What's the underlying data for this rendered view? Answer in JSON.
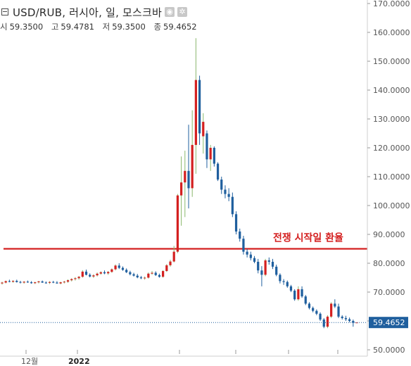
{
  "header": {
    "title": "USD/RUB, 러시아, 일, 모스크바",
    "ohlc": [
      {
        "label": "시",
        "value": "59.3500"
      },
      {
        "label": "고",
        "value": "59.4781"
      },
      {
        "label": "저",
        "value": "59.3500"
      },
      {
        "label": "종",
        "value": "59.4652"
      }
    ],
    "icons": [
      "eye-icon",
      "gear-icon"
    ]
  },
  "chart_data": {
    "type": "candlestick",
    "title": "USD/RUB, 러시아, 일, 모스크바",
    "y_ticks": [
      "50.0000",
      "60.0000",
      "70.0000",
      "80.0000",
      "90.0000",
      "100.0000",
      "110.0000",
      "120.0000",
      "130.0000",
      "140.0000",
      "150.0000",
      "160.0000",
      "170.0000"
    ],
    "ylim": [
      50,
      170
    ],
    "x_ticks": [
      "12월",
      "2022"
    ],
    "last_price_label": "59.4652",
    "last_price": 59.4652,
    "reference_line": {
      "value": 85.0,
      "label": "전쟁 시작일 환율",
      "color": "#d42020"
    },
    "colors": {
      "up": "#d42020",
      "down": "#1f5f9e",
      "wick_up": "#8ab86c",
      "wick_down": "#1f5f9e"
    },
    "candles": [
      [
        73.0,
        73.6,
        72.6,
        73.3
      ],
      [
        73.3,
        74.0,
        73.0,
        73.8
      ],
      [
        73.8,
        74.3,
        73.4,
        73.6
      ],
      [
        73.6,
        74.1,
        73.2,
        73.9
      ],
      [
        73.9,
        74.3,
        73.3,
        73.5
      ],
      [
        73.5,
        73.9,
        73.0,
        73.3
      ],
      [
        73.3,
        73.8,
        72.9,
        73.6
      ],
      [
        73.6,
        74.0,
        73.2,
        73.4
      ],
      [
        73.4,
        73.8,
        72.9,
        73.1
      ],
      [
        73.1,
        73.6,
        72.8,
        73.4
      ],
      [
        73.4,
        73.9,
        73.0,
        73.7
      ],
      [
        73.7,
        74.0,
        73.2,
        73.3
      ],
      [
        73.3,
        73.7,
        72.9,
        73.2
      ],
      [
        73.2,
        73.8,
        72.8,
        73.5
      ],
      [
        73.5,
        73.9,
        73.1,
        73.3
      ],
      [
        73.3,
        73.8,
        72.9,
        73.0
      ],
      [
        73.0,
        73.6,
        72.7,
        73.4
      ],
      [
        73.4,
        73.9,
        73.0,
        73.6
      ],
      [
        73.6,
        74.4,
        73.2,
        74.1
      ],
      [
        74.1,
        74.8,
        73.7,
        74.5
      ],
      [
        74.5,
        75.2,
        74.0,
        74.8
      ],
      [
        74.8,
        75.6,
        74.3,
        75.3
      ],
      [
        75.3,
        77.6,
        75.0,
        77.1
      ],
      [
        77.1,
        77.8,
        75.8,
        76.0
      ],
      [
        76.0,
        76.5,
        75.1,
        75.4
      ],
      [
        75.4,
        76.2,
        74.9,
        75.8
      ],
      [
        75.8,
        76.8,
        75.4,
        76.4
      ],
      [
        76.4,
        77.2,
        76.0,
        76.9
      ],
      [
        76.9,
        77.5,
        76.2,
        76.5
      ],
      [
        76.5,
        77.3,
        76.0,
        77.0
      ],
      [
        77.0,
        78.2,
        76.7,
        77.9
      ],
      [
        77.9,
        79.6,
        77.5,
        79.2
      ],
      [
        79.2,
        80.0,
        78.0,
        78.4
      ],
      [
        78.4,
        78.9,
        77.4,
        77.7
      ],
      [
        77.7,
        78.2,
        76.6,
        76.9
      ],
      [
        76.9,
        77.4,
        75.8,
        76.2
      ],
      [
        76.2,
        76.7,
        75.4,
        75.7
      ],
      [
        75.7,
        76.3,
        74.8,
        75.1
      ],
      [
        75.1,
        75.6,
        74.5,
        74.8
      ],
      [
        74.8,
        75.4,
        74.3,
        75.0
      ],
      [
        75.0,
        76.8,
        74.7,
        76.4
      ],
      [
        76.4,
        77.3,
        76.0,
        76.7
      ],
      [
        76.7,
        77.2,
        75.6,
        75.9
      ],
      [
        75.9,
        76.4,
        75.0,
        75.3
      ],
      [
        75.3,
        77.6,
        75.0,
        77.3
      ],
      [
        77.3,
        79.7,
        77.0,
        79.3
      ],
      [
        79.3,
        81.2,
        78.8,
        80.6
      ],
      [
        80.6,
        86.0,
        80.3,
        84.0
      ],
      [
        84.0,
        104.0,
        83.5,
        103.5
      ],
      [
        103.5,
        117.0,
        93.0,
        108.0
      ],
      [
        108.0,
        119.0,
        96.0,
        112.0
      ],
      [
        112.0,
        128.0,
        99.0,
        106.0
      ],
      [
        106.0,
        133.0,
        103.0,
        121.0
      ],
      [
        121.0,
        158.0,
        111.0,
        143.5
      ],
      [
        143.5,
        145.0,
        121.0,
        125.0
      ],
      [
        124.0,
        132.0,
        118.0,
        129.0
      ],
      [
        125.0,
        126.0,
        113.0,
        116.0
      ],
      [
        116.0,
        121.0,
        112.0,
        120.0
      ],
      [
        120.0,
        120.5,
        113.5,
        114.5
      ],
      [
        114.5,
        115.0,
        108.5,
        109.0
      ],
      [
        109.0,
        110.0,
        104.0,
        105.5
      ],
      [
        105.5,
        107.0,
        102.5,
        104.0
      ],
      [
        104.0,
        106.0,
        101.5,
        103.0
      ],
      [
        103.0,
        104.5,
        96.0,
        97.0
      ],
      [
        97.0,
        98.0,
        90.0,
        91.0
      ],
      [
        91.0,
        92.0,
        87.5,
        88.5
      ],
      [
        88.5,
        89.5,
        83.0,
        84.0
      ],
      [
        84.0,
        85.0,
        82.0,
        83.0
      ],
      [
        83.0,
        84.0,
        81.0,
        81.8
      ],
      [
        81.8,
        82.5,
        80.0,
        80.5
      ],
      [
        80.5,
        81.5,
        76.5,
        77.5
      ],
      [
        77.5,
        79.0,
        72.0,
        76.0
      ],
      [
        76.0,
        81.5,
        75.5,
        81.0
      ],
      [
        81.0,
        82.0,
        79.5,
        80.5
      ],
      [
        80.5,
        81.5,
        78.0,
        78.8
      ],
      [
        78.8,
        79.5,
        75.5,
        76.0
      ],
      [
        76.0,
        76.5,
        73.0,
        73.8
      ],
      [
        73.8,
        74.5,
        72.5,
        73.5
      ],
      [
        73.5,
        74.0,
        71.5,
        72.0
      ],
      [
        72.0,
        72.5,
        70.0,
        70.5
      ],
      [
        70.5,
        71.0,
        67.0,
        67.5
      ],
      [
        67.5,
        72.0,
        67.0,
        71.0
      ],
      [
        71.0,
        72.0,
        68.0,
        68.5
      ],
      [
        68.5,
        69.0,
        65.5,
        66.0
      ],
      [
        66.0,
        66.5,
        64.0,
        64.5
      ],
      [
        64.5,
        65.0,
        63.0,
        63.5
      ],
      [
        63.5,
        64.0,
        62.0,
        62.5
      ],
      [
        62.5,
        63.0,
        60.0,
        60.5
      ],
      [
        60.5,
        61.0,
        57.5,
        58.0
      ],
      [
        58.0,
        62.0,
        57.5,
        61.5
      ],
      [
        61.5,
        66.5,
        61.0,
        66.0
      ],
      [
        66.0,
        67.5,
        64.5,
        65.0
      ],
      [
        65.0,
        66.0,
        61.0,
        61.5
      ],
      [
        61.5,
        62.0,
        60.5,
        61.0
      ],
      [
        61.0,
        61.8,
        60.0,
        60.6
      ],
      [
        60.6,
        61.2,
        59.5,
        60.0
      ],
      [
        60.0,
        60.5,
        58.0,
        59.35
      ],
      [
        59.35,
        59.48,
        59.35,
        59.4652
      ]
    ]
  }
}
